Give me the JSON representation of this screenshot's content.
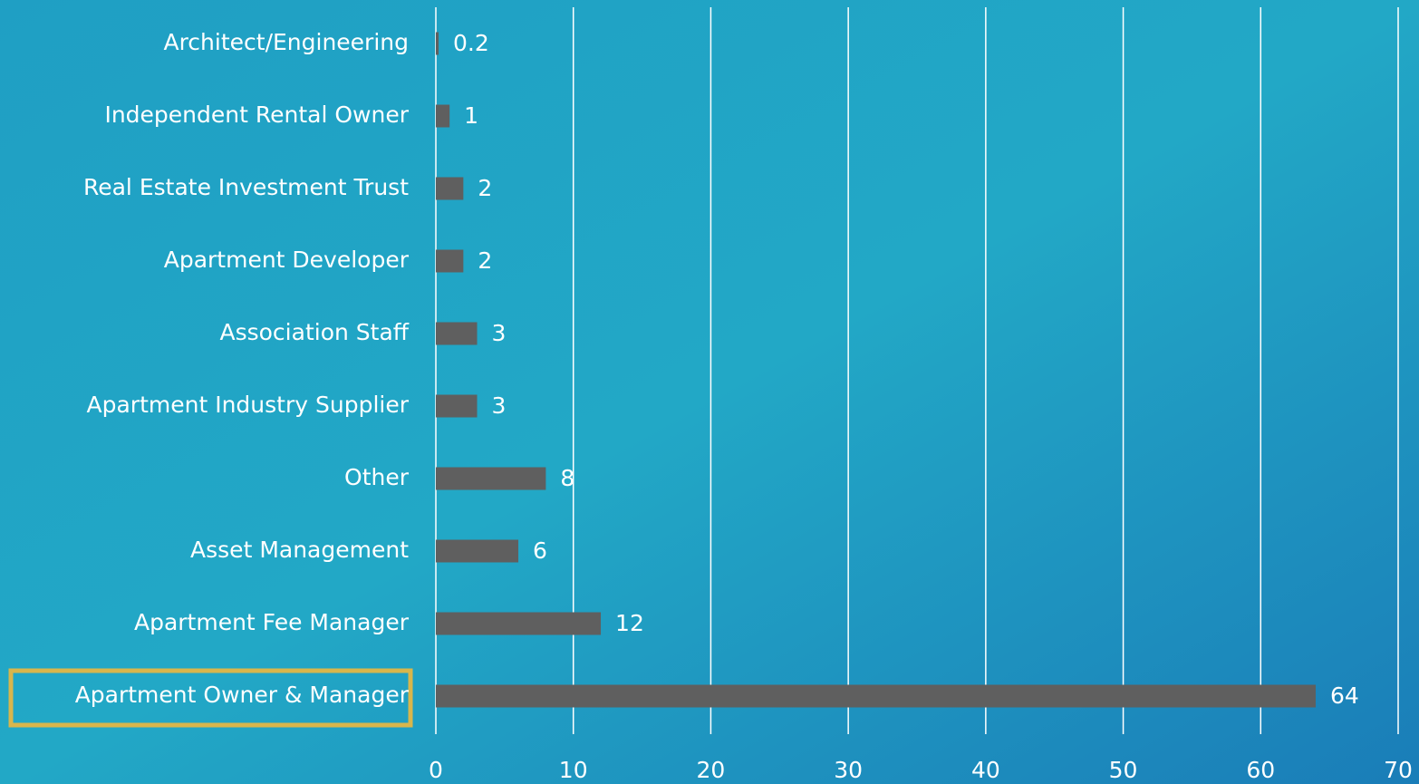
{
  "chart_data": {
    "type": "bar",
    "orientation": "horizontal",
    "categories": [
      "Architect/Engineering",
      "Independent Rental Owner",
      "Real Estate Investment Trust",
      "Apartment Developer",
      "Association Staff",
      "Apartment Industry Supplier",
      "Other",
      "Asset Management",
      "Apartment Fee Manager",
      "Apartment Owner & Manager"
    ],
    "values": [
      0.2,
      1,
      2,
      2,
      3,
      3,
      8,
      6,
      12,
      64
    ],
    "color": "#5f5f5f",
    "xlim": [
      0,
      70
    ],
    "xticks": [
      0,
      10,
      20,
      30,
      40,
      50,
      60,
      70
    ],
    "grid": true
  }
}
